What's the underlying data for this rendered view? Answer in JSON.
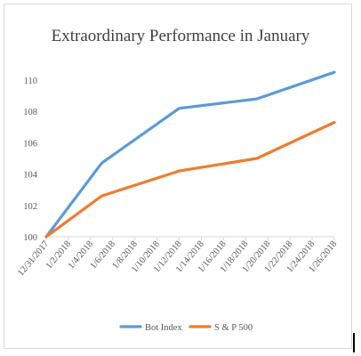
{
  "chart_data": {
    "type": "line",
    "title": "Extraordinary Performance in January",
    "xlabel": "",
    "ylabel": "",
    "x_tick_labels": [
      "12/31/2017",
      "1/2/2018",
      "1/4/2018",
      "1/6/2018",
      "1/8/2018",
      "1/10/2018",
      "1/12/2018",
      "1/14/2018",
      "1/16/2018",
      "1/18/2018",
      "1/20/2018",
      "1/22/2018",
      "1/24/2018",
      "1/26/2018"
    ],
    "y_tick_labels": [
      "100",
      "102",
      "104",
      "106",
      "108",
      "110"
    ],
    "xlim": [
      "12/31/2017",
      "1/26/2018"
    ],
    "ylim": [
      100,
      110
    ],
    "grid": false,
    "legend_position": "bottom",
    "series": [
      {
        "name": "Bot Index",
        "color": "#5b9bd5",
        "points": [
          {
            "x": "12/31/2017",
            "y": 100.0
          },
          {
            "x": "1/5/2018",
            "y": 104.7
          },
          {
            "x": "1/12/2018",
            "y": 108.2
          },
          {
            "x": "1/19/2018",
            "y": 108.8
          },
          {
            "x": "1/26/2018",
            "y": 110.5
          }
        ]
      },
      {
        "name": "S & P 500",
        "color": "#ed7d31",
        "points": [
          {
            "x": "12/31/2017",
            "y": 100.0
          },
          {
            "x": "1/5/2018",
            "y": 102.6
          },
          {
            "x": "1/12/2018",
            "y": 104.2
          },
          {
            "x": "1/19/2018",
            "y": 105.0
          },
          {
            "x": "1/26/2018",
            "y": 107.3
          }
        ]
      }
    ]
  },
  "colors": {
    "axis": "#d9d9d9",
    "text": "#595959",
    "title": "#404040"
  }
}
